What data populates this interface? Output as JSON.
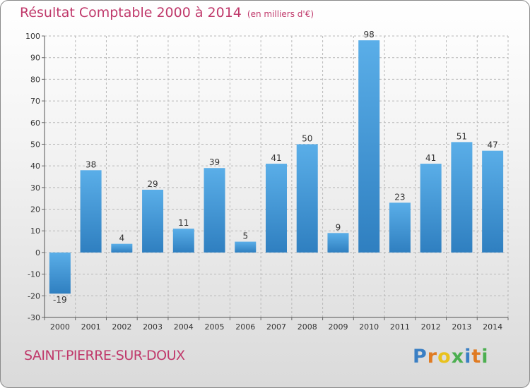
{
  "header": {
    "title": "Résultat Comptable 2000 à 2014",
    "subtitle": "(en milliers d'€)"
  },
  "footer": {
    "commune": "SAINT-PIERRE-SUR-DOUX",
    "brand": "Proxiti"
  },
  "brand_letters": [
    {
      "ch": "P",
      "color": "#3a7fc4"
    },
    {
      "ch": "r",
      "color": "#e07b22"
    },
    {
      "ch": "o",
      "color": "#e9c21e"
    },
    {
      "ch": "x",
      "color": "#4caf50"
    },
    {
      "ch": "i",
      "color": "#3a7fc4"
    },
    {
      "ch": "t",
      "color": "#e07b22"
    },
    {
      "ch": "i",
      "color": "#4caf50"
    }
  ],
  "colors": {
    "title": "#c0396b",
    "bar_top": "#5aaee8",
    "bar_bottom": "#2f7fc0",
    "grid": "#b8b8b8"
  },
  "chart_data": {
    "type": "bar",
    "title": "Résultat Comptable 2000 à 2014",
    "subtitle": "(en milliers d'€)",
    "xlabel": "",
    "ylabel": "",
    "categories": [
      "2000",
      "2001",
      "2002",
      "2003",
      "2004",
      "2005",
      "2006",
      "2007",
      "2008",
      "2009",
      "2010",
      "2011",
      "2012",
      "2013",
      "2014"
    ],
    "values": [
      -19,
      38,
      4,
      29,
      11,
      39,
      5,
      41,
      50,
      9,
      98,
      23,
      41,
      51,
      47
    ],
    "value_labels": [
      "-19",
      "38",
      "4",
      "29",
      "11",
      "39",
      "5",
      "41",
      "50",
      "9",
      "98",
      "23",
      "41",
      "51",
      "47"
    ],
    "yticks": [
      -30,
      -20,
      -10,
      0,
      10,
      20,
      30,
      40,
      50,
      60,
      70,
      80,
      90,
      100
    ],
    "ytick_labels": [
      "-30",
      "-20",
      "-10",
      "0",
      "10",
      "20",
      "30",
      "40",
      "50",
      "60",
      "70",
      "80",
      "90",
      "100"
    ],
    "ylim": [
      -30,
      100
    ],
    "grid": true
  }
}
